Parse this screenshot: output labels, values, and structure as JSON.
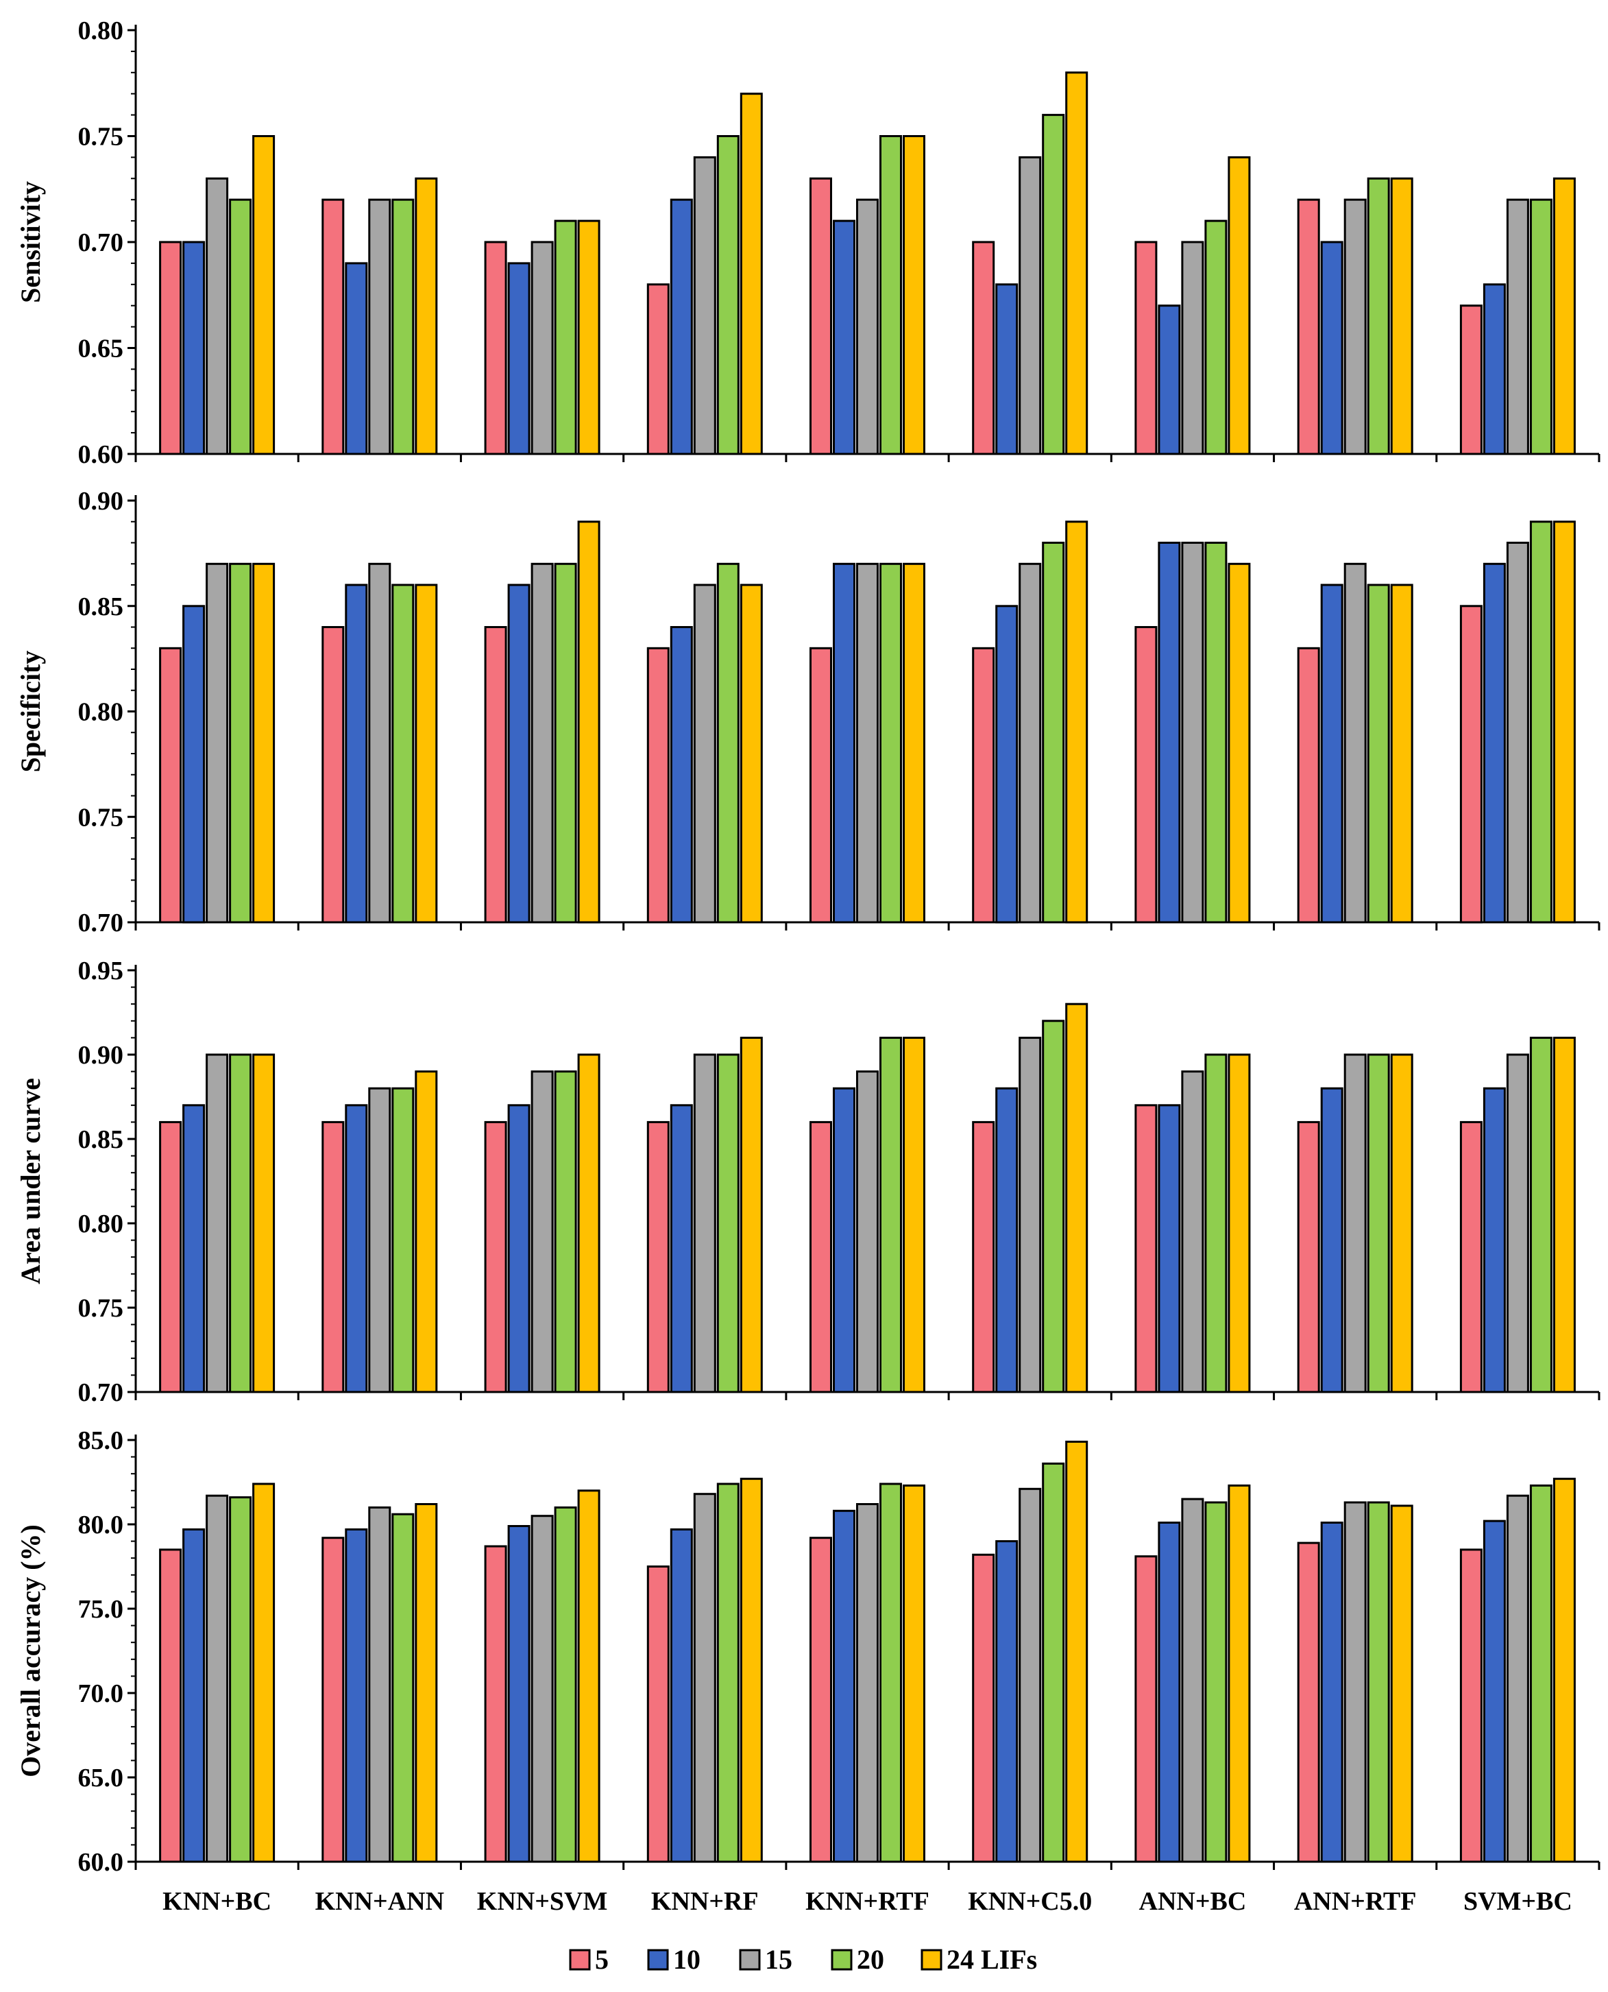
{
  "chart_data": {
    "type": "bar",
    "categories": [
      "KNN+BC",
      "KNN+ANN",
      "KNN+SVM",
      "KNN+RF",
      "KNN+RTF",
      "KNN+C5.0",
      "ANN+BC",
      "ANN+RTF",
      "SVM+BC"
    ],
    "series_names": [
      "5",
      "10",
      "15",
      "20",
      "24 LIFs"
    ],
    "colors": [
      "#f4727d",
      "#3a66c4",
      "#a6a6a6",
      "#8fce4e",
      "#ffc000"
    ],
    "panels": [
      {
        "ylabel": "Sensitivity",
        "ylim": [
          0.6,
          0.8
        ],
        "yticks": [
          "0.60",
          "0.65",
          "0.70",
          "0.75",
          "0.80"
        ],
        "series": [
          {
            "name": "5",
            "values": [
              0.7,
              0.72,
              0.7,
              0.68,
              0.73,
              0.7,
              0.7,
              0.72,
              0.67
            ]
          },
          {
            "name": "10",
            "values": [
              0.7,
              0.69,
              0.69,
              0.72,
              0.71,
              0.68,
              0.67,
              0.7,
              0.68
            ]
          },
          {
            "name": "15",
            "values": [
              0.73,
              0.72,
              0.7,
              0.74,
              0.72,
              0.74,
              0.7,
              0.72,
              0.72
            ]
          },
          {
            "name": "20",
            "values": [
              0.72,
              0.72,
              0.71,
              0.75,
              0.75,
              0.76,
              0.71,
              0.73,
              0.72
            ]
          },
          {
            "name": "24 LIFs",
            "values": [
              0.75,
              0.73,
              0.71,
              0.77,
              0.75,
              0.78,
              0.74,
              0.73,
              0.73
            ]
          }
        ]
      },
      {
        "ylabel": "Specificity",
        "ylim": [
          0.7,
          0.9
        ],
        "yticks": [
          "0.70",
          "0.75",
          "0.80",
          "0.85",
          "0.90"
        ],
        "series": [
          {
            "name": "5",
            "values": [
              0.83,
              0.84,
              0.84,
              0.83,
              0.83,
              0.83,
              0.84,
              0.83,
              0.85
            ]
          },
          {
            "name": "10",
            "values": [
              0.85,
              0.86,
              0.86,
              0.84,
              0.87,
              0.85,
              0.88,
              0.86,
              0.87
            ]
          },
          {
            "name": "15",
            "values": [
              0.87,
              0.87,
              0.87,
              0.86,
              0.87,
              0.87,
              0.88,
              0.87,
              0.88
            ]
          },
          {
            "name": "20",
            "values": [
              0.87,
              0.86,
              0.87,
              0.87,
              0.87,
              0.88,
              0.88,
              0.86,
              0.89
            ]
          },
          {
            "name": "24 LIFs",
            "values": [
              0.87,
              0.86,
              0.89,
              0.86,
              0.87,
              0.89,
              0.87,
              0.86,
              0.89
            ]
          }
        ]
      },
      {
        "ylabel": "Area under curve",
        "ylim": [
          0.7,
          0.95
        ],
        "yticks": [
          "0.70",
          "0.75",
          "0.80",
          "0.85",
          "0.90",
          "0.95"
        ],
        "series": [
          {
            "name": "5",
            "values": [
              0.86,
              0.86,
              0.86,
              0.86,
              0.86,
              0.86,
              0.87,
              0.86,
              0.86
            ]
          },
          {
            "name": "10",
            "values": [
              0.87,
              0.87,
              0.87,
              0.87,
              0.88,
              0.88,
              0.87,
              0.88,
              0.88
            ]
          },
          {
            "name": "15",
            "values": [
              0.9,
              0.88,
              0.89,
              0.9,
              0.89,
              0.91,
              0.89,
              0.9,
              0.9
            ]
          },
          {
            "name": "20",
            "values": [
              0.9,
              0.88,
              0.89,
              0.9,
              0.91,
              0.92,
              0.9,
              0.9,
              0.91
            ]
          },
          {
            "name": "24 LIFs",
            "values": [
              0.9,
              0.89,
              0.9,
              0.91,
              0.91,
              0.93,
              0.9,
              0.9,
              0.91
            ]
          }
        ]
      },
      {
        "ylabel": "Overall accuracy (%)",
        "ylim": [
          60.0,
          85.0
        ],
        "yticks": [
          "60.0",
          "65.0",
          "70.0",
          "75.0",
          "80.0",
          "85.0"
        ],
        "series": [
          {
            "name": "5",
            "values": [
              78.5,
              79.2,
              78.7,
              77.5,
              79.2,
              78.2,
              78.1,
              78.9,
              78.5
            ]
          },
          {
            "name": "10",
            "values": [
              79.7,
              79.7,
              79.9,
              79.7,
              80.8,
              79.0,
              80.1,
              80.1,
              80.2
            ]
          },
          {
            "name": "15",
            "values": [
              81.7,
              81.0,
              80.5,
              81.8,
              81.2,
              82.1,
              81.5,
              81.3,
              81.7
            ]
          },
          {
            "name": "20",
            "values": [
              81.6,
              80.6,
              81.0,
              82.4,
              82.4,
              83.6,
              81.3,
              81.3,
              82.3
            ]
          },
          {
            "name": "24 LIFs",
            "values": [
              82.4,
              81.2,
              82.0,
              82.7,
              82.3,
              84.9,
              82.3,
              81.1,
              82.7
            ]
          }
        ]
      }
    ],
    "xlabel": "",
    "legend_position": "bottom-center"
  }
}
